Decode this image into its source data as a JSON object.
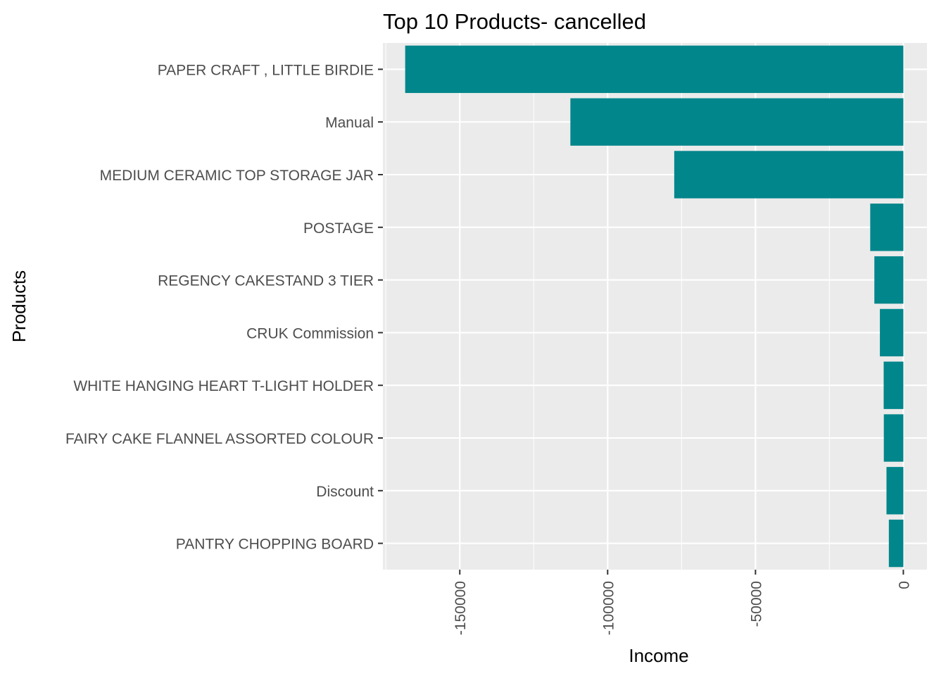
{
  "chart_data": {
    "type": "bar",
    "orientation": "horizontal",
    "title": "Top 10 Products- cancelled",
    "xlabel": "Income",
    "ylabel": "Products",
    "categories": [
      "PAPER CRAFT , LITTLE BIRDIE",
      "Manual",
      "MEDIUM CERAMIC TOP STORAGE JAR",
      "POSTAGE",
      "REGENCY CAKESTAND 3 TIER",
      "CRUK Commission",
      "WHITE HANGING HEART T-LIGHT HOLDER",
      "FAIRY CAKE FLANNEL ASSORTED COLOUR",
      "Discount",
      "PANTRY CHOPPING BOARD"
    ],
    "values": [
      -168470,
      -112600,
      -77480,
      -11200,
      -9800,
      -7930,
      -6650,
      -6600,
      -5700,
      -4900
    ],
    "xlim": [
      -176000,
      8000
    ],
    "x_ticks": [
      -150000,
      -100000,
      -50000,
      0
    ],
    "x_tick_labels": [
      "-150000",
      "-100000",
      "-50000",
      "0"
    ],
    "x_tick_rotation": -90,
    "bar_color": "#00868B",
    "panel_background": "#EBEBEB",
    "grid": true,
    "legend": "none"
  }
}
